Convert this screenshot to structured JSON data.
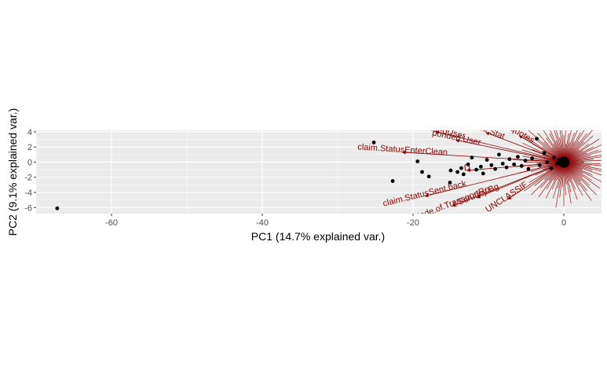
{
  "chart_data": {
    "type": "scatter",
    "title": "",
    "xlabel": "PC1 (14.7% explained var.)",
    "ylabel": "PC2 (9.1% explained var.)",
    "xlim": [
      -70,
      5
    ],
    "ylim": [
      -6.8,
      4.2
    ],
    "x_ticks": [
      -60,
      -40,
      -20,
      0
    ],
    "y_ticks": [
      -6,
      -4,
      -2,
      0,
      2,
      4
    ],
    "x_tick_labels": [
      "-60",
      "-40",
      "-20",
      "0"
    ],
    "y_tick_labels": [
      "-6",
      "-4",
      "-2",
      "0",
      "2",
      "4"
    ],
    "grid": true,
    "panel_background": "#ebebeb",
    "grid_color": "#ffffff",
    "point_color": "#000000",
    "arrow_color": "#8b0000",
    "points": [
      {
        "x": -67.2,
        "y": -6.1
      },
      {
        "x": -25.2,
        "y": 2.6
      },
      {
        "x": -22.7,
        "y": -2.5
      },
      {
        "x": -19.4,
        "y": 0.1
      },
      {
        "x": -18.8,
        "y": -1.3
      },
      {
        "x": -17.9,
        "y": -1.9
      },
      {
        "x": -15.1,
        "y": -2.7
      },
      {
        "x": -15.0,
        "y": -1.1
      },
      {
        "x": -14.1,
        "y": -1.3
      },
      {
        "x": -13.6,
        "y": -0.8
      },
      {
        "x": -13.3,
        "y": -1.6
      },
      {
        "x": -12.7,
        "y": -0.3
      },
      {
        "x": -12.2,
        "y": 0.6
      },
      {
        "x": -11.6,
        "y": -1.0
      },
      {
        "x": -11.0,
        "y": -0.6
      },
      {
        "x": -10.7,
        "y": -1.5
      },
      {
        "x": -10.2,
        "y": 0.3
      },
      {
        "x": -9.6,
        "y": -0.4
      },
      {
        "x": -9.1,
        "y": -0.9
      },
      {
        "x": -8.6,
        "y": 1.0
      },
      {
        "x": -8.1,
        "y": -0.2
      },
      {
        "x": -7.6,
        "y": -0.7
      },
      {
        "x": -7.2,
        "y": 0.4
      },
      {
        "x": -6.6,
        "y": -0.3
      },
      {
        "x": -6.1,
        "y": 0.7
      },
      {
        "x": -5.6,
        "y": -0.5
      },
      {
        "x": -5.1,
        "y": 0.2
      },
      {
        "x": -4.7,
        "y": -0.9
      },
      {
        "x": -4.2,
        "y": 0.5
      },
      {
        "x": -3.6,
        "y": 3.1
      },
      {
        "x": -3.2,
        "y": -0.4
      },
      {
        "x": -2.6,
        "y": 1.2
      },
      {
        "x": -2.2,
        "y": 0.0
      },
      {
        "x": -1.7,
        "y": -0.8
      },
      {
        "x": -1.3,
        "y": 0.6
      },
      {
        "x": -0.9,
        "y": -0.2
      },
      {
        "x": -0.6,
        "y": 0.3
      },
      {
        "x": -0.3,
        "y": -0.1
      },
      {
        "x": 0.0,
        "y": 0.1
      },
      {
        "x": 0.2,
        "y": -0.3
      },
      {
        "x": 0.3,
        "y": 0.4
      },
      {
        "x": 0.4,
        "y": 0.0
      }
    ],
    "loadings": [
      {
        "label": "claim.StatusEnterClean",
        "x": -21.4,
        "y": 1.3
      },
      {
        "label": "claim.StatusSent.back",
        "x": -18.4,
        "y": -4.5
      },
      {
        "label": "Mode.of.TransportRo",
        "x": -14.8,
        "y": -5.8
      },
      {
        "label": "t.Scrutiny.Bg",
        "x": -11.5,
        "y": -4.7
      },
      {
        "label": "UNCLASSIF",
        "x": -7.4,
        "y": -4.9
      },
      {
        "label": "respondedUser",
        "x": -17.0,
        "y": 4.0
      },
      {
        "label": "ponded.User",
        "x": -14.3,
        "y": 2.9
      },
      {
        "label": "ment.Stat",
        "x": -10.3,
        "y": 3.9
      },
      {
        "label": "cquotes",
        "x": -5.9,
        "y": 3.5
      },
      {
        "label": "D",
        "x": -12.8,
        "y": -1.1
      }
    ]
  }
}
